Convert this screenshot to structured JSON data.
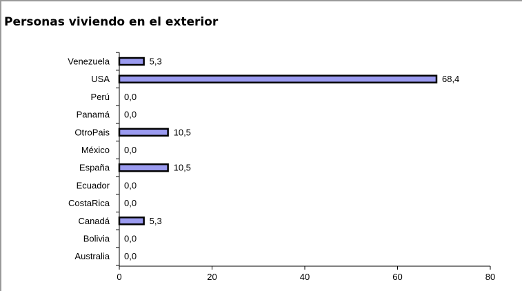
{
  "chart_data": {
    "type": "bar",
    "orientation": "horizontal",
    "title": "Personas viviendo en el exterior",
    "categories": [
      "Venezuela",
      "USA",
      "Perú",
      "Panamá",
      "OtroPais",
      "México",
      "España",
      "Ecuador",
      "CostaRica",
      "Canadá",
      "Bolivia",
      "Australia"
    ],
    "values": [
      5.3,
      68.4,
      0.0,
      0.0,
      10.5,
      0.0,
      10.5,
      0.0,
      0.0,
      5.3,
      0.0,
      0.0
    ],
    "value_labels": [
      "5,3",
      "68,4",
      "0,0",
      "0,0",
      "10,5",
      "0,0",
      "10,5",
      "0,0",
      "0,0",
      "5,3",
      "0,0",
      "0,0"
    ],
    "xlim": [
      0,
      80
    ],
    "xticks": [
      0,
      20,
      40,
      60,
      80
    ],
    "xtick_labels": [
      "0",
      "20",
      "40",
      "60",
      "80"
    ],
    "xlabel": "",
    "ylabel": "",
    "grid": false,
    "colors": {
      "bar_fill": "#9b9bf0",
      "bar_stroke": "#000000"
    }
  }
}
